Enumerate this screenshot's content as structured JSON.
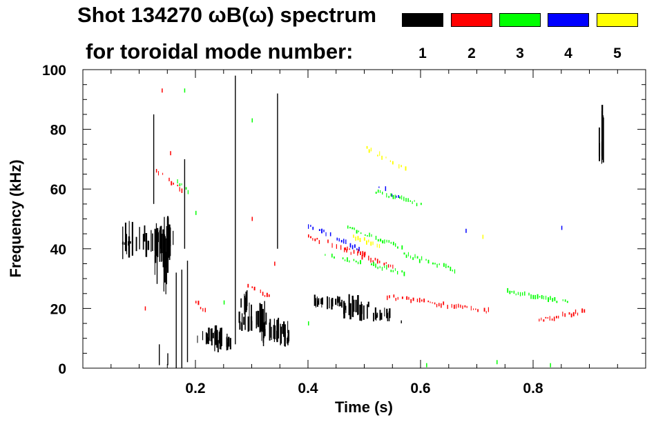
{
  "title_line1": "Shot 134270 ωB(ω) spectrum",
  "title_line2": "for toroidal mode number:",
  "legend": [
    {
      "mode": "1",
      "color": "#000000"
    },
    {
      "mode": "2",
      "color": "#ff0000"
    },
    {
      "mode": "3",
      "color": "#00ff00"
    },
    {
      "mode": "4",
      "color": "#0000ff"
    },
    {
      "mode": "5",
      "color": "#ffff00"
    }
  ],
  "chart_data": {
    "type": "scatter",
    "title": "Shot 134270 ωB(ω) spectrum",
    "xlabel": "Time (s)",
    "ylabel": "Frequency (kHz)",
    "xlim": [
      0.0,
      1.0
    ],
    "ylim": [
      0,
      100
    ],
    "xticks": [
      0.2,
      0.4,
      0.6,
      0.8
    ],
    "xtick_labels": [
      "0.2",
      "0.4",
      "0.6",
      "0.8"
    ],
    "yticks": [
      0,
      20,
      40,
      60,
      80,
      100
    ],
    "ytick_labels": [
      "0",
      "20",
      "40",
      "60",
      "80",
      "100"
    ],
    "grid": false,
    "series": [
      {
        "name": "n=1",
        "color": "#000000",
        "blobs": [
          {
            "t": 0.115,
            "f": 43,
            "dt": 0.045,
            "df": 8
          },
          {
            "t": 0.14,
            "f": 38,
            "dt": 0.015,
            "df": 14
          },
          {
            "t": 0.075,
            "f": 42,
            "dt": 0.008,
            "df": 1
          },
          {
            "t": 0.225,
            "f": 10,
            "dt": 0.022,
            "df": 5
          },
          {
            "t": 0.25,
            "f": 8,
            "dt": 0.012,
            "df": 4
          },
          {
            "t": 0.3,
            "f": 16,
            "dt": 0.025,
            "df": 7
          },
          {
            "t": 0.34,
            "f": 12,
            "dt": 0.025,
            "df": 6
          },
          {
            "t": 0.285,
            "f": 22,
            "dt": 0.008,
            "df": 5
          },
          {
            "t": 0.365,
            "f": 10,
            "dt": 0.008,
            "df": 3
          },
          {
            "t": 0.435,
            "f": 22,
            "dt": 0.025,
            "df": 3
          },
          {
            "t": 0.485,
            "f": 20,
            "dt": 0.025,
            "df": 5
          },
          {
            "t": 0.53,
            "f": 18,
            "dt": 0.015,
            "df": 3
          },
          {
            "t": 0.92,
            "f": 76,
            "dt": 0.004,
            "df": 13
          }
        ],
        "streaks": [
          {
            "t": 0.125,
            "f0": 55,
            "f1": 85
          },
          {
            "t": 0.18,
            "f0": 40,
            "f1": 70
          },
          {
            "t": 0.135,
            "f0": 1,
            "f1": 8
          },
          {
            "t": 0.15,
            "f0": 1,
            "f1": 5
          },
          {
            "t": 0.165,
            "f0": 0,
            "f1": 32
          },
          {
            "t": 0.175,
            "f0": 0,
            "f1": 33
          },
          {
            "t": 0.185,
            "f0": 2,
            "f1": 36
          },
          {
            "t": 0.27,
            "f0": 8,
            "f1": 98
          },
          {
            "t": 0.345,
            "f0": 40,
            "f1": 92
          },
          {
            "t": 0.565,
            "f0": 15,
            "f1": 16
          }
        ]
      },
      {
        "name": "n=2",
        "color": "#ff0000",
        "tracks": [
          {
            "t": [
              0.13,
              0.175
            ],
            "f": [
              66,
              60
            ]
          },
          {
            "t": [
              0.2,
              0.225
            ],
            "f": [
              22,
              18
            ]
          },
          {
            "t": [
              0.285,
              0.33
            ],
            "f": [
              28,
              24
            ]
          },
          {
            "t": [
              0.4,
              0.5
            ],
            "f": [
              44,
              38
            ]
          },
          {
            "t": [
              0.46,
              0.55
            ],
            "f": [
              40,
              34
            ]
          },
          {
            "t": [
              0.54,
              0.72
            ],
            "f": [
              24,
              19
            ]
          },
          {
            "t": [
              0.81,
              0.89
            ],
            "f": [
              16,
              19
            ]
          }
        ],
        "points": [
          {
            "t": 0.14,
            "f": 93
          },
          {
            "t": 0.155,
            "f": 72
          },
          {
            "t": 0.3,
            "f": 50
          },
          {
            "t": 0.11,
            "f": 20
          },
          {
            "t": 0.34,
            "f": 35
          }
        ]
      },
      {
        "name": "n=3",
        "color": "#00ff00",
        "tracks": [
          {
            "t": [
              0.16,
              0.19
            ],
            "f": [
              63,
              59
            ]
          },
          {
            "t": [
              0.43,
              0.57
            ],
            "f": [
              38,
              32
            ]
          },
          {
            "t": [
              0.47,
              0.57
            ],
            "f": [
              47,
              40
            ]
          },
          {
            "t": [
              0.52,
              0.6
            ],
            "f": [
              59,
              55
            ]
          },
          {
            "t": [
              0.57,
              0.66
            ],
            "f": [
              38,
              33
            ]
          },
          {
            "t": [
              0.75,
              0.86
            ],
            "f": [
              26,
              22
            ]
          }
        ],
        "points": [
          {
            "t": 0.18,
            "f": 93
          },
          {
            "t": 0.3,
            "f": 83
          },
          {
            "t": 0.2,
            "f": 52
          },
          {
            "t": 0.25,
            "f": 22
          },
          {
            "t": 0.4,
            "f": 15
          },
          {
            "t": 0.61,
            "f": 1
          },
          {
            "t": 0.735,
            "f": 2
          },
          {
            "t": 0.83,
            "f": 1
          }
        ]
      },
      {
        "name": "n=4",
        "color": "#0000ff",
        "tracks": [
          {
            "t": [
              0.4,
              0.49
            ],
            "f": [
              48,
              40
            ]
          },
          {
            "t": [
              0.51,
              0.56
            ],
            "f": [
              63,
              57
            ]
          }
        ],
        "points": [
          {
            "t": 0.68,
            "f": 46
          },
          {
            "t": 0.85,
            "f": 47
          }
        ]
      },
      {
        "name": "n=5",
        "color": "#ffff00",
        "tracks": [
          {
            "t": [
              0.5,
              0.58
            ],
            "f": [
              74,
              66
            ]
          },
          {
            "t": [
              0.48,
              0.53
            ],
            "f": [
              44,
              41
            ]
          }
        ],
        "points": [
          {
            "t": 0.71,
            "f": 44
          }
        ]
      }
    ]
  }
}
